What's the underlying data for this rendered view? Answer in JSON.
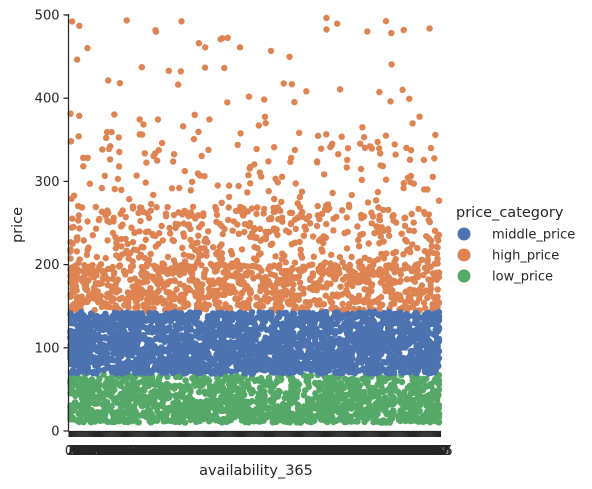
{
  "chart_data": {
    "type": "scatter",
    "subtype": "categorical strip plot (jittered)",
    "xlabel": "availability_365",
    "ylabel": "price",
    "ylim": [
      0,
      500
    ],
    "yticks": [
      0,
      100,
      200,
      300,
      400,
      500
    ],
    "x_categories": "0 to 365 (366 integer categories; tick labels overlap into an illegible band)",
    "x_category_count": 366,
    "grid": false,
    "legend": {
      "title": "price_category",
      "placement": "right",
      "entries": [
        {
          "label": "middle_price",
          "color": "#4c72b0"
        },
        {
          "label": "high_price",
          "color": "#dd8452"
        },
        {
          "label": "low_price",
          "color": "#55a868"
        }
      ]
    },
    "series": [
      {
        "name": "low_price",
        "color": "#55a868",
        "y_range": [
          10,
          68
        ],
        "density": "dense, evenly spread across all x categories"
      },
      {
        "name": "middle_price",
        "color": "#4c72b0",
        "y_range": [
          69,
          143
        ],
        "density": "very dense solid band across all x categories"
      },
      {
        "name": "high_price",
        "color": "#dd8452",
        "y_range": [
          144,
          500
        ],
        "density": "dense 144-200, thinning out above 250 toward 500"
      }
    ]
  }
}
